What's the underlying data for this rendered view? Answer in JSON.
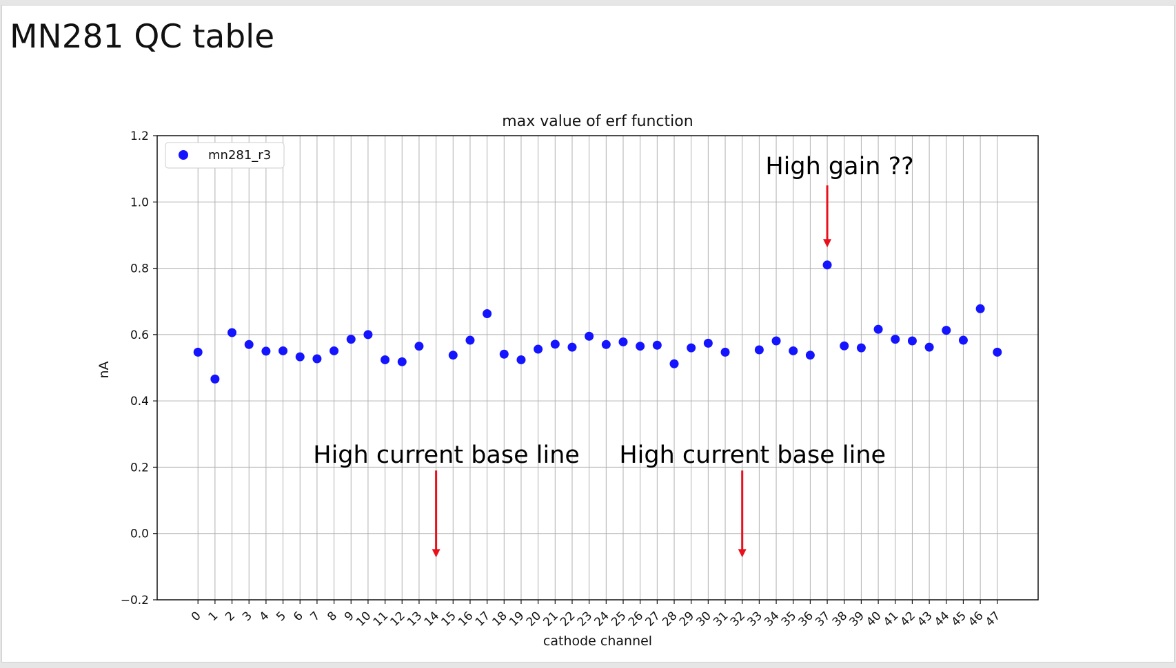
{
  "slide": {
    "title": "MN281 QC table"
  },
  "chart_data": {
    "type": "scatter",
    "title": "max value of erf function",
    "xlabel": "cathode channel",
    "ylabel": "nA",
    "ylim": [
      -0.2,
      1.2
    ],
    "xlim": [
      -2.4,
      49.4
    ],
    "yticks": [
      "−0.2",
      "0.0",
      "0.2",
      "0.4",
      "0.6",
      "0.8",
      "1.0",
      "1.2"
    ],
    "ytick_values": [
      -0.2,
      0.0,
      0.2,
      0.4,
      0.6,
      0.8,
      1.0,
      1.2
    ],
    "xticks": [
      0,
      1,
      2,
      3,
      4,
      5,
      6,
      7,
      8,
      9,
      10,
      11,
      12,
      13,
      14,
      15,
      16,
      17,
      18,
      19,
      20,
      21,
      22,
      23,
      24,
      25,
      26,
      27,
      28,
      29,
      30,
      31,
      32,
      33,
      34,
      35,
      36,
      37,
      38,
      39,
      40,
      41,
      42,
      43,
      44,
      45,
      46,
      47
    ],
    "grid": true,
    "legend_position": "upper-left",
    "color": "#1414ff",
    "series": [
      {
        "name": "mn281_r3",
        "x": [
          0,
          1,
          2,
          3,
          4,
          5,
          6,
          7,
          8,
          9,
          10,
          11,
          12,
          13,
          15,
          16,
          17,
          18,
          19,
          20,
          21,
          22,
          23,
          24,
          25,
          26,
          27,
          28,
          29,
          30,
          31,
          33,
          34,
          35,
          36,
          37,
          38,
          39,
          40,
          41,
          42,
          43,
          44,
          45,
          46,
          47
        ],
        "y": [
          0.547,
          0.466,
          0.606,
          0.57,
          0.55,
          0.551,
          0.533,
          0.527,
          0.551,
          0.586,
          0.6,
          0.524,
          0.518,
          0.565,
          0.538,
          0.583,
          0.663,
          0.541,
          0.524,
          0.556,
          0.571,
          0.562,
          0.595,
          0.57,
          0.578,
          0.565,
          0.568,
          0.512,
          0.56,
          0.574,
          0.547,
          0.554,
          0.581,
          0.551,
          0.538,
          0.81,
          0.566,
          0.56,
          0.616,
          0.586,
          0.581,
          0.562,
          0.613,
          0.583,
          0.678,
          0.547
        ]
      }
    ],
    "annotations": [
      {
        "text": "High gain ??",
        "arrow_x": 37,
        "arrow_from": 1.05,
        "arrow_to": 0.865
      },
      {
        "text": "High current base line",
        "arrow_x": 14,
        "arrow_from": 0.19,
        "arrow_to": -0.07
      },
      {
        "text": "High current base line",
        "arrow_x": 32,
        "arrow_from": 0.19,
        "arrow_to": -0.07
      }
    ],
    "annotation_color": "#e8101a"
  }
}
